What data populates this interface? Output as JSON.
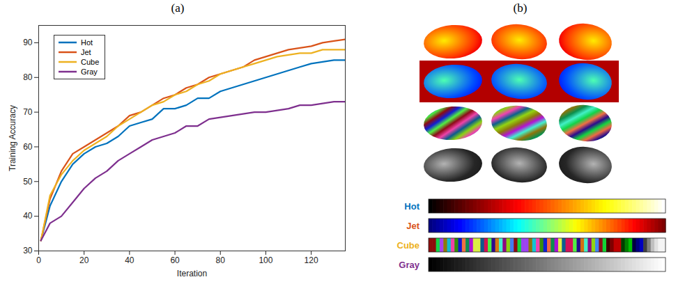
{
  "chart_data": {
    "type": "line",
    "title": "(a)",
    "x_label": "Iteration",
    "y_label": "Training Accuracy",
    "x": [
      1,
      5,
      10,
      15,
      20,
      25,
      30,
      35,
      40,
      45,
      50,
      55,
      60,
      65,
      70,
      75,
      80,
      85,
      90,
      95,
      100,
      105,
      110,
      115,
      120,
      125,
      130,
      135
    ],
    "series": [
      {
        "name": "Hot",
        "color": "#0072BD",
        "values": [
          33,
          43,
          50,
          55,
          58,
          60,
          61,
          63,
          66,
          67,
          68,
          71,
          71,
          72,
          74,
          74,
          76,
          77,
          78,
          79,
          80,
          81,
          82,
          83,
          84,
          84.5,
          85,
          85
        ]
      },
      {
        "name": "Jet",
        "color": "#D95319",
        "values": [
          33,
          45,
          53,
          58,
          60,
          62,
          64,
          66,
          69,
          70,
          72,
          74,
          75,
          77,
          78,
          80,
          81,
          82,
          83,
          85,
          86,
          87,
          88,
          88.5,
          89,
          90,
          90.5,
          91
        ]
      },
      {
        "name": "Cube",
        "color": "#EDB120",
        "values": [
          33,
          46,
          52,
          56,
          59,
          61,
          63,
          66,
          68,
          70,
          72,
          73,
          75,
          76,
          78,
          79,
          81,
          82,
          83,
          84,
          85,
          86,
          86.5,
          87,
          87,
          88,
          88,
          88
        ]
      },
      {
        "name": "Gray",
        "color": "#7E2F8E",
        "values": [
          33,
          38,
          40,
          44,
          48,
          51,
          53,
          56,
          58,
          60,
          62,
          63,
          64,
          66,
          66,
          68,
          68.5,
          69,
          69.5,
          70,
          70,
          70.5,
          71,
          72,
          72,
          72.5,
          73,
          73
        ]
      }
    ],
    "xlim": [
      0,
      135
    ],
    "xticks": [
      0,
      20,
      40,
      60,
      80,
      100,
      120
    ],
    "ylim": [
      30,
      95
    ],
    "yticks": [
      30,
      40,
      50,
      60,
      70,
      80,
      90
    ],
    "grid": false,
    "legend": "upper left"
  },
  "panel_b": {
    "title": "(b)",
    "colormap_labels": [
      "Hot",
      "Jet",
      "Cube",
      "Gray"
    ]
  }
}
